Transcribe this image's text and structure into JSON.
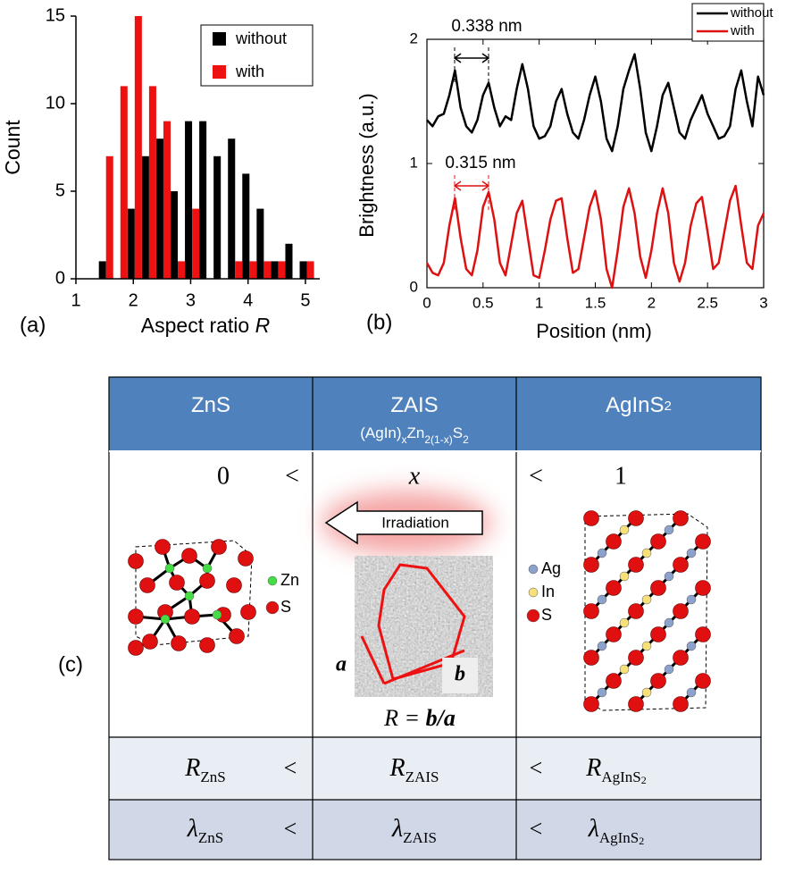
{
  "chart_data": [
    {
      "type": "histogram",
      "xlabel": [
        "Aspect ratio ",
        "R"
      ],
      "ylabel": "Count",
      "bins": [
        1.4,
        1.65,
        1.9,
        2.15,
        2.4,
        2.65,
        2.9,
        3.15,
        3.4,
        3.65,
        3.9,
        4.15,
        4.4,
        4.65,
        4.9,
        5.15
      ],
      "series": [
        {
          "name": "without",
          "color": "#000000",
          "values": [
            1,
            0,
            4,
            7,
            8,
            5,
            9,
            9,
            7,
            8,
            6,
            4,
            1,
            2,
            1
          ]
        },
        {
          "name": "with",
          "color": "#ee1111",
          "values": [
            7,
            11,
            15,
            11,
            9,
            1,
            4,
            0,
            0,
            1,
            1,
            1,
            1,
            0,
            1
          ]
        }
      ],
      "xlim": [
        1,
        5.25
      ],
      "xticks": [
        1,
        2,
        3,
        4,
        5
      ],
      "ylim": [
        0,
        15
      ],
      "yticks": [
        0,
        5,
        10,
        15
      ],
      "legend": "upper right"
    },
    {
      "type": "line",
      "xlabel": "Position (nm)",
      "ylabel": "Brightness (a.u.)",
      "x": [
        0,
        0.05,
        0.1,
        0.15,
        0.2,
        0.25,
        0.3,
        0.35,
        0.4,
        0.45,
        0.5,
        0.55,
        0.6,
        0.65,
        0.7,
        0.75,
        0.8,
        0.85,
        0.9,
        0.95,
        1,
        1.05,
        1.1,
        1.15,
        1.2,
        1.25,
        1.3,
        1.35,
        1.4,
        1.45,
        1.5,
        1.55,
        1.6,
        1.65,
        1.7,
        1.75,
        1.8,
        1.85,
        1.9,
        1.95,
        2,
        2.05,
        2.1,
        2.15,
        2.2,
        2.25,
        2.3,
        2.35,
        2.4,
        2.45,
        2.5,
        2.55,
        2.6,
        2.65,
        2.7,
        2.75,
        2.8,
        2.85,
        2.9,
        2.95,
        3
      ],
      "series": [
        {
          "name": "without",
          "color": "#000000",
          "values": [
            1.35,
            1.3,
            1.38,
            1.4,
            1.55,
            1.75,
            1.45,
            1.3,
            1.25,
            1.35,
            1.55,
            1.65,
            1.45,
            1.3,
            1.38,
            1.35,
            1.6,
            1.8,
            1.6,
            1.3,
            1.2,
            1.22,
            1.3,
            1.5,
            1.6,
            1.4,
            1.25,
            1.2,
            1.35,
            1.55,
            1.7,
            1.5,
            1.2,
            1.1,
            1.3,
            1.6,
            1.75,
            1.88,
            1.6,
            1.25,
            1.1,
            1.3,
            1.55,
            1.65,
            1.45,
            1.25,
            1.2,
            1.35,
            1.45,
            1.55,
            1.4,
            1.3,
            1.2,
            1.22,
            1.3,
            1.6,
            1.75,
            1.5,
            1.3,
            1.7,
            1.55
          ]
        },
        {
          "name": "with",
          "color": "#dd1111",
          "values": [
            0.2,
            0.12,
            0.1,
            0.2,
            0.5,
            0.72,
            0.4,
            0.15,
            0.1,
            0.3,
            0.65,
            0.77,
            0.55,
            0.2,
            0.1,
            0.35,
            0.6,
            0.7,
            0.4,
            0.1,
            0.08,
            0.3,
            0.55,
            0.7,
            0.72,
            0.4,
            0.12,
            0.15,
            0.4,
            0.65,
            0.78,
            0.55,
            0.15,
            0,
            0.3,
            0.65,
            0.8,
            0.6,
            0.25,
            0.08,
            0.3,
            0.6,
            0.8,
            0.6,
            0.2,
            0.05,
            0.2,
            0.5,
            0.68,
            0.73,
            0.45,
            0.15,
            0.2,
            0.45,
            0.7,
            0.82,
            0.5,
            0.2,
            0.15,
            0.5,
            0.6
          ]
        }
      ],
      "annotations": [
        {
          "text": "0.338 nm",
          "color": "#000000"
        },
        {
          "text": "0.315 nm",
          "color": "#dd1111"
        }
      ],
      "xlim": [
        0,
        3
      ],
      "xticks": [
        0,
        0.5,
        1,
        1.5,
        2,
        2.5,
        3
      ],
      "ylim": [
        0,
        2
      ],
      "yticks": [
        0,
        1,
        2
      ],
      "legend": "upper right"
    }
  ],
  "panel_labels": [
    "(a)",
    "(b)",
    "(c)"
  ],
  "table": {
    "header": [
      {
        "parts": [
          "ZnS"
        ]
      },
      {
        "parts": [
          "ZAIS"
        ],
        "formula": [
          "(AgIn)",
          "x",
          "Zn",
          "2(1-x)",
          "S",
          "2"
        ]
      },
      {
        "parts": [
          "AgInS",
          "2"
        ]
      }
    ],
    "composition": [
      "0",
      "<",
      "x",
      "<",
      "1"
    ],
    "irradiation": "Irradiation",
    "zns_legend": [
      "Zn",
      "S"
    ],
    "agins2_legend": [
      "Ag",
      "In",
      "S"
    ],
    "tem_labels": {
      "a": "a",
      "b": "b",
      "relation": [
        "R = ",
        "b/a"
      ]
    },
    "rows": [
      [
        {
          "symbol": "R",
          "sub": [
            "ZnS"
          ]
        },
        "<",
        {
          "symbol": "R",
          "sub": [
            "ZAIS"
          ]
        },
        "<",
        {
          "symbol": "R",
          "sub": [
            "AgInS",
            "2"
          ]
        }
      ],
      [
        {
          "symbol": "λ",
          "sub": [
            "ZnS"
          ]
        },
        "<",
        {
          "symbol": "λ",
          "sub": [
            "ZAIS"
          ]
        },
        "<",
        {
          "symbol": "λ",
          "sub": [
            "AgInS",
            "2"
          ]
        }
      ]
    ]
  }
}
